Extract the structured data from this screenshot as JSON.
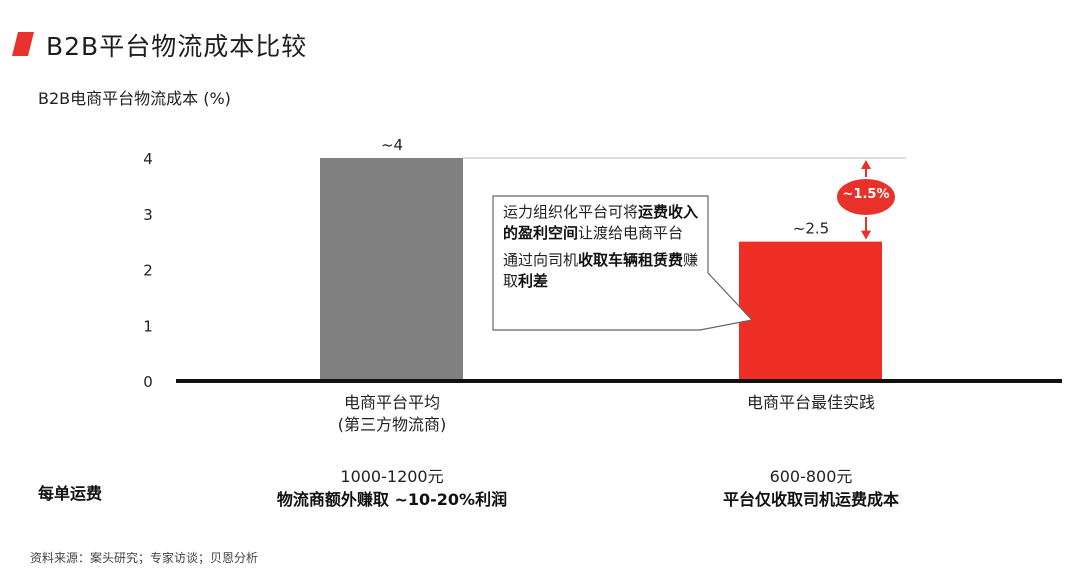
{
  "header": {
    "title": "B2B平台物流成本比较",
    "accent_color": "#e8312a"
  },
  "chart_data": {
    "type": "bar",
    "ylabel": "B2B电商平台物流成本 (%)",
    "ylim": [
      0,
      4
    ],
    "yticks": [
      "0",
      "1",
      "2",
      "3",
      "4"
    ],
    "categories": [
      "电商平台平均\n(第三方物流商)",
      "电商平台最佳实践"
    ],
    "values": [
      4,
      2.5
    ],
    "value_labels": [
      "~4",
      "~2.5"
    ],
    "colors": [
      "#808080",
      "#ee2d24"
    ],
    "difference_label": "~1.5%"
  },
  "callout": {
    "p1_a": "运力组织化平台可将",
    "p1_b": "运费收入的盈利空间",
    "p1_c": "让渡给电商平台",
    "p2_a": "通过向司机",
    "p2_b": "收取车辆租赁费",
    "p2_c": "赚取",
    "p2_d": "利差"
  },
  "categories_display": {
    "left_line1": "电商平台平均",
    "left_line2": "(第三方物流商)",
    "right_line1": "电商平台最佳实践"
  },
  "fees": {
    "row_label": "每单运费",
    "left_price": "1000-1200元",
    "left_note": "物流商额外赚取 ~10-20%利润",
    "right_price": "600-800元",
    "right_note": "平台仅收取司机运费成本"
  },
  "footer": {
    "source": "资料来源：案头研究；专家访谈；贝恩分析"
  }
}
